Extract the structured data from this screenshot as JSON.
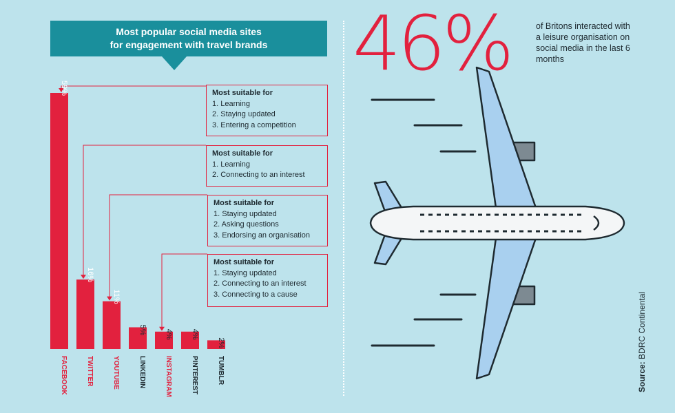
{
  "banner": {
    "line1": "Most popular social media sites",
    "line2": "for engagement with travel brands"
  },
  "chart_data": {
    "type": "bar",
    "categories": [
      "FACEBOOK",
      "TWITTER",
      "YOUTUBE",
      "LINKEDIN",
      "INSTAGRAM",
      "PINTEREST",
      "TUMBLR"
    ],
    "values": [
      59,
      16,
      11,
      5,
      4,
      4,
      2
    ],
    "value_labels": [
      "59%",
      "16%",
      "11%",
      "5%",
      "4%",
      "4%",
      "2%"
    ],
    "category_colors": [
      "#e2213e",
      "#e2213e",
      "#e2213e",
      "#1e2a30",
      "#e2213e",
      "#1e2a30",
      "#1e2a30"
    ],
    "bar_color": "#e2213e",
    "ylim": [
      0,
      59
    ],
    "title": "Most popular social media sites for engagement with travel brands"
  },
  "callouts": [
    {
      "head": "Most suitable for",
      "items": [
        "1. Learning",
        "2. Staying updated",
        "3. Entering a competition"
      ]
    },
    {
      "head": "Most suitable for",
      "items": [
        "1. Learning",
        "2. Connecting to an interest"
      ]
    },
    {
      "head": "Most suitable for",
      "items": [
        "1. Staying updated",
        "2. Asking questions",
        "3. Endorsing an organisation"
      ]
    },
    {
      "head": "Most suitable for",
      "items": [
        "1. Staying updated",
        "2. Connecting to an interest",
        "3. Connecting to a cause"
      ]
    }
  ],
  "stat": {
    "value": "46%",
    "text": "of Britons interacted with a leisure organisation on social media in the last 6 months"
  },
  "source": {
    "label": "Source:",
    "text": " BDRC Continental"
  },
  "colors": {
    "accent": "#e2213e",
    "teal": "#1a8f9c",
    "background": "#bde3ec",
    "plane_body": "#f4f6f7",
    "plane_wing": "#a9d0ef"
  }
}
